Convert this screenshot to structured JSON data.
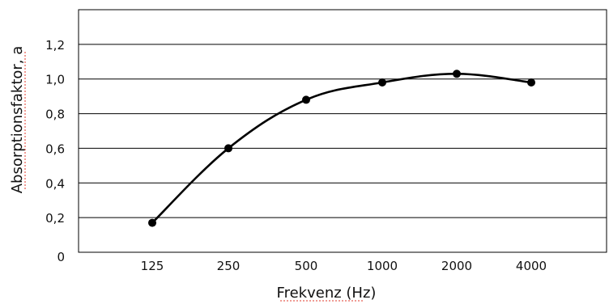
{
  "chart_data": {
    "type": "line",
    "title": "",
    "xlabel": "Frekvenz (Hz)",
    "ylabel": "Absorptionsfaktor, a",
    "categories": [
      "125",
      "250",
      "500",
      "1000",
      "2000",
      "4000"
    ],
    "x_axis_scale": "categorical (octave bands)",
    "ylim": [
      0,
      1.4
    ],
    "y_ticks": [
      "0",
      "0,2",
      "0,4",
      "0,6",
      "0,8",
      "1,0",
      "1,2"
    ],
    "y_tick_values": [
      0,
      0.2,
      0.4,
      0.6,
      0.8,
      1.0,
      1.2
    ],
    "grid": "horizontal",
    "legend": "none",
    "series": [
      {
        "values": [
          0.17,
          0.6,
          0.88,
          0.98,
          1.03,
          0.98
        ],
        "marker": "filled circle",
        "color": "#000000"
      }
    ]
  }
}
